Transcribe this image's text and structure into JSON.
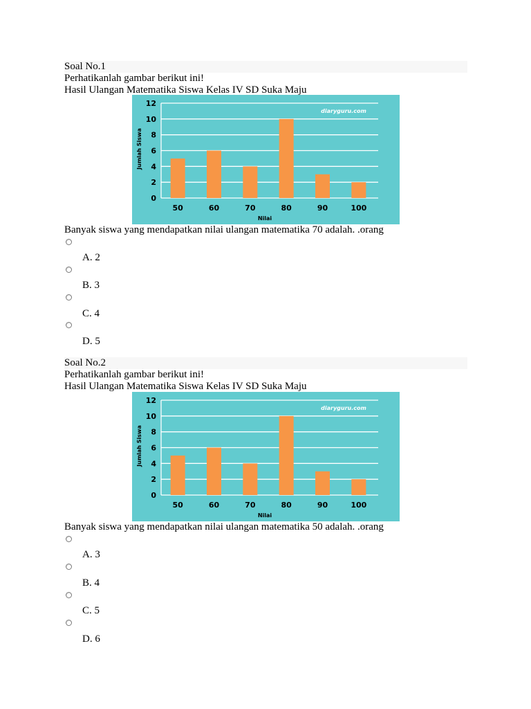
{
  "questions": [
    {
      "title": "Soal No.1",
      "instruction": "Perhatikanlah gambar berikut ini!",
      "caption": "Hasil Ulangan Matematika Siswa Kelas IV SD Suka Maju",
      "prompt": "Banyak siswa yang mendapatkan nilai ulangan matematika 70 adalah. .orang",
      "options": [
        "A. 2",
        "B. 3",
        "C. 4",
        "D. 5"
      ]
    },
    {
      "title": "Soal No.2",
      "instruction": "Perhatikanlah gambar berikut ini!",
      "caption": "Hasil Ulangan Matematika Siswa Kelas IV SD Suka Maju",
      "prompt": "Banyak siswa yang mendapatkan nilai ulangan matematika 50 adalah. .orang",
      "options": [
        "A. 3",
        "B. 4",
        "C. 5",
        "D. 6"
      ]
    }
  ],
  "chart_data": [
    {
      "type": "bar",
      "categories": [
        "50",
        "60",
        "70",
        "80",
        "90",
        "100"
      ],
      "values": [
        5,
        6,
        4,
        10,
        3,
        2
      ],
      "xlabel": "Nilai",
      "ylabel": "Jumlah Siswa",
      "ylim": [
        0,
        12
      ],
      "yticks": [
        0,
        2,
        4,
        6,
        8,
        10,
        12
      ],
      "grid": true,
      "watermark": "diaryguru.com",
      "colors": {
        "background": "#62cbcf",
        "bar": "#f79646",
        "grid": "#ffffff",
        "text": "#000000",
        "watermark": "#ffffff"
      }
    },
    {
      "type": "bar",
      "categories": [
        "50",
        "60",
        "70",
        "80",
        "90",
        "100"
      ],
      "values": [
        5,
        6,
        4,
        10,
        3,
        2
      ],
      "xlabel": "Nilai",
      "ylabel": "Jumlah Siswa",
      "ylim": [
        0,
        12
      ],
      "yticks": [
        0,
        2,
        4,
        6,
        8,
        10,
        12
      ],
      "grid": true,
      "watermark": "diaryguru.com",
      "colors": {
        "background": "#62cbcf",
        "bar": "#f79646",
        "grid": "#ffffff",
        "text": "#000000",
        "watermark": "#ffffff"
      }
    }
  ]
}
